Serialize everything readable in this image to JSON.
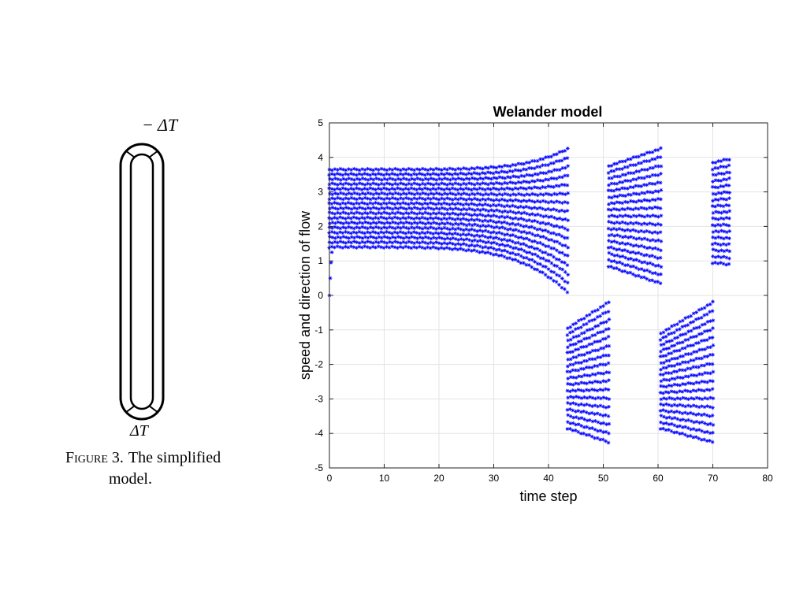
{
  "figure": {
    "top_label": "− ΔT",
    "bottom_label": "ΔT",
    "caption_prefix": "Figure 3.",
    "caption_line1_rest": "The simplified",
    "caption_line2": "model."
  },
  "chart_data": {
    "type": "scatter",
    "title": "Welander model",
    "xlabel": "time step",
    "ylabel": "speed and direction of flow",
    "xlim": [
      0,
      80
    ],
    "ylim": [
      -5,
      5
    ],
    "x_ticks": [
      0,
      10,
      20,
      30,
      40,
      50,
      60,
      70,
      80
    ],
    "y_ticks": [
      -5,
      -4,
      -3,
      -2,
      -1,
      0,
      1,
      2,
      3,
      4,
      5
    ],
    "grid": true,
    "marker": "*",
    "color": "#0000ff",
    "series": [
      {
        "segments": [
          {
            "x_start": 0,
            "x_end": 43.5,
            "upper_start": 3.65,
            "upper_end": 4.25,
            "lower_start": 1.45,
            "lower_end": 0.1,
            "lower_floor": 1.4
          },
          {
            "x_start": 43.5,
            "x_end": 51,
            "upper_start": -0.95,
            "upper_end": -0.2,
            "lower_start": -3.85,
            "lower_end": -4.25
          },
          {
            "x_start": 51,
            "x_end": 60.5,
            "upper_start": 3.75,
            "upper_end": 4.25,
            "lower_start": 0.85,
            "lower_end": 0.35
          },
          {
            "x_start": 60.5,
            "x_end": 70,
            "upper_start": -1.1,
            "upper_end": -0.2,
            "lower_start": -3.85,
            "lower_end": -4.25
          },
          {
            "x_start": 70,
            "x_end": 73,
            "upper_start": 3.85,
            "upper_end": 3.95,
            "lower_start": 0.95,
            "lower_end": 0.9
          }
        ]
      }
    ]
  }
}
